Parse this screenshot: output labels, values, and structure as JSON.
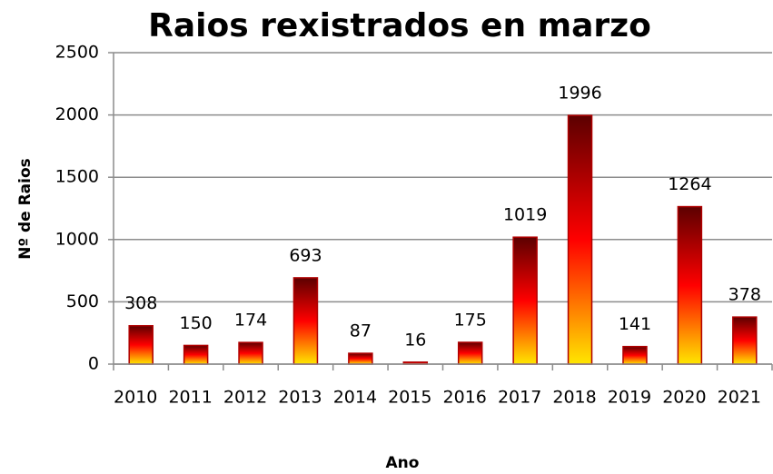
{
  "chart_data": {
    "type": "bar",
    "title": "Raios rexistrados en marzo",
    "x_label": "Ano",
    "y_label": "Nº de Raios",
    "categories": [
      "2010",
      "2011",
      "2012",
      "2013",
      "2014",
      "2015",
      "2016",
      "2017",
      "2018",
      "2019",
      "2020",
      "2021"
    ],
    "values": [
      308,
      150,
      174,
      693,
      87,
      16,
      175,
      1019,
      1996,
      141,
      1264,
      378
    ],
    "gradient": [
      "#5c0000",
      "#ff0000",
      "#ffe600"
    ],
    "border": "#b00000",
    "ylim": [
      0,
      2500
    ],
    "yticks": [
      0,
      500,
      1000,
      1500,
      2000,
      2500
    ],
    "grid": true
  }
}
